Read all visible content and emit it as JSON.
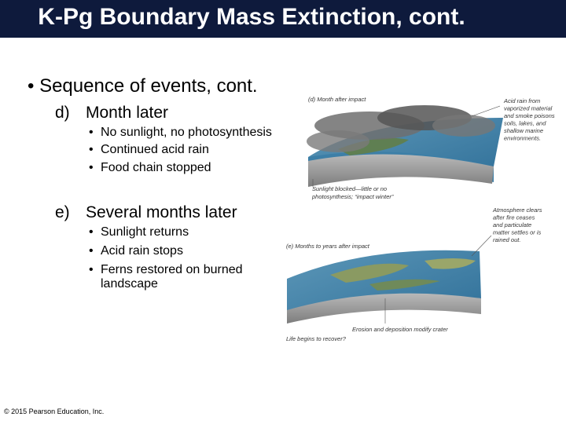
{
  "title": "K-Pg Boundary Mass Extinction, cont.",
  "main_bullet": "Sequence of events, cont.",
  "sections": [
    {
      "label": "d)",
      "heading": "Month later",
      "items": [
        "No sunlight, no photosynthesis",
        "Continued acid rain",
        "Food chain stopped"
      ]
    },
    {
      "label": "e)",
      "heading": "Several months later",
      "items": [
        "Sunlight returns",
        "Acid rain stops",
        "Ferns restored on burned landscape"
      ]
    }
  ],
  "figures": [
    {
      "caption": "(d) Month after impact",
      "side_label": [
        "Acid rain from",
        "vaporized material",
        "and smoke poisons",
        "soils, lakes, and",
        "shallow marine",
        "environments."
      ],
      "bottom_label": [
        "Sunlight blocked—little or no",
        "photosynthesis; “impact winter”"
      ]
    },
    {
      "caption": "(e) Months to years after impact",
      "side_label": [
        "Atmosphere clears",
        "after fire ceases",
        "and particulate",
        "matter settles or is",
        "rained out."
      ],
      "bottom_label": [
        "Erosion and deposition modify crater",
        "Life begins to recover?"
      ]
    }
  ],
  "footer": "© 2015 Pearson Education, Inc."
}
